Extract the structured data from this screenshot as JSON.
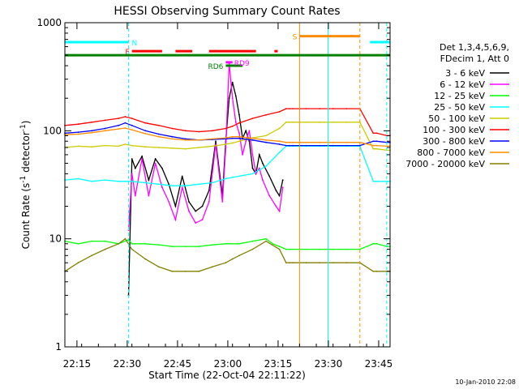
{
  "chart_data": {
    "type": "line",
    "title": "HESSI Observing Summary Count Rates",
    "xlabel": "Start Time (22-Oct-04 22:11:22)",
    "ylabel_main": "Count Rate (s",
    "ylabel_sup": "-1",
    "ylabel_tail": " detector",
    "ylabel_close": ")",
    "x_unit": "minutes after 22:11:22",
    "xlim": [
      0,
      97
    ],
    "ylim": [
      1,
      1000
    ],
    "yscale": "log",
    "xticks": [
      {
        "label": "22:15",
        "x": 3.6
      },
      {
        "label": "22:30",
        "x": 18.6
      },
      {
        "label": "22:45",
        "x": 33.6
      },
      {
        "label": "23:00",
        "x": 48.6
      },
      {
        "label": "23:15",
        "x": 63.6
      },
      {
        "label": "23:30",
        "x": 78.6
      },
      {
        "label": "23:45",
        "x": 93.6
      }
    ],
    "yticks": [
      {
        "label": "1",
        "y": 1
      },
      {
        "label": "10",
        "y": 10
      },
      {
        "label": "100",
        "y": 100
      },
      {
        "label": "1000",
        "y": 1000
      }
    ],
    "legend_header": [
      "Det 1,3,4,5,6,9,",
      "FDecim 1, Att 0"
    ],
    "legend_position": "right",
    "series": [
      {
        "name": "3 - 6 keV",
        "color": "#000000",
        "x": [
          19,
          20,
          21,
          23,
          25,
          27,
          29,
          31,
          33,
          35,
          37,
          39,
          41,
          43,
          45,
          47,
          48,
          49,
          50,
          51,
          52,
          53,
          54,
          55,
          56,
          57,
          58,
          59,
          61,
          63,
          64,
          65
        ],
        "y": [
          3,
          55,
          45,
          58,
          35,
          55,
          45,
          32,
          20,
          38,
          22,
          18,
          20,
          28,
          80,
          25,
          80,
          200,
          280,
          210,
          140,
          85,
          100,
          80,
          45,
          40,
          60,
          50,
          38,
          28,
          25,
          35
        ]
      },
      {
        "name": "6 - 12 keV",
        "color": "#ff00ff",
        "x": [
          19,
          20,
          21,
          23,
          25,
          27,
          29,
          31,
          33,
          35,
          37,
          39,
          41,
          43,
          45,
          47,
          48,
          49,
          50,
          51,
          52,
          53,
          54,
          55,
          56,
          57,
          58,
          59,
          61,
          63,
          64,
          65
        ],
        "y": [
          12,
          40,
          25,
          55,
          25,
          50,
          30,
          22,
          15,
          30,
          18,
          14,
          15,
          22,
          75,
          22,
          70,
          420,
          200,
          120,
          95,
          60,
          80,
          100,
          60,
          40,
          45,
          35,
          25,
          20,
          18,
          30
        ]
      },
      {
        "name": "12 - 25 keV",
        "color": "#00ff00",
        "x": [
          0,
          4,
          8,
          12,
          16,
          19,
          20,
          24,
          28,
          32,
          36,
          40,
          44,
          48,
          52,
          56,
          60,
          62,
          64,
          66,
          67,
          68,
          72,
          76,
          80,
          84,
          88,
          92,
          93,
          96,
          97
        ],
        "y": [
          9.5,
          9,
          9.5,
          9.5,
          9,
          9.8,
          9,
          9,
          8.8,
          8.5,
          8.5,
          8.5,
          8.8,
          9,
          9,
          9.5,
          10,
          9,
          8.5,
          8,
          8,
          8,
          8,
          8,
          8,
          8,
          8,
          9,
          9,
          8.5,
          8.5
        ]
      },
      {
        "name": "25 - 50 keV",
        "color": "#00ffff",
        "x": [
          0,
          4,
          8,
          12,
          16,
          18,
          20,
          24,
          28,
          32,
          36,
          40,
          44,
          48,
          50,
          52,
          56,
          60,
          64,
          66,
          67,
          68,
          72,
          76,
          80,
          84,
          88,
          92,
          93,
          96,
          97
        ],
        "y": [
          35,
          36,
          34,
          35,
          34,
          34,
          34,
          33,
          32,
          31,
          31,
          32,
          33,
          36,
          37,
          38,
          40,
          47,
          63,
          72,
          72,
          72,
          72,
          72,
          72,
          72,
          72,
          34,
          34,
          34,
          34
        ]
      },
      {
        "name": "50 - 100 keV",
        "color": "#cccc00",
        "x": [
          0,
          4,
          8,
          12,
          16,
          18,
          20,
          24,
          28,
          32,
          36,
          40,
          44,
          48,
          50,
          52,
          56,
          60,
          64,
          66,
          67,
          68,
          72,
          76,
          80,
          84,
          88,
          92,
          93,
          96,
          97
        ],
        "y": [
          70,
          72,
          71,
          73,
          72,
          75,
          73,
          71,
          70,
          69,
          68,
          70,
          72,
          75,
          77,
          80,
          86,
          90,
          105,
          120,
          120,
          120,
          120,
          120,
          120,
          120,
          120,
          68,
          68,
          66,
          66
        ]
      },
      {
        "name": "100 - 300 keV",
        "color": "#ff0000",
        "x": [
          0,
          4,
          8,
          12,
          16,
          18,
          20,
          24,
          28,
          32,
          36,
          40,
          44,
          48,
          50,
          52,
          56,
          60,
          64,
          66,
          67,
          68,
          72,
          76,
          80,
          84,
          88,
          92,
          93,
          96,
          97
        ],
        "y": [
          112,
          115,
          120,
          125,
          130,
          135,
          130,
          118,
          112,
          105,
          100,
          98,
          100,
          105,
          110,
          118,
          130,
          140,
          150,
          160,
          160,
          160,
          160,
          160,
          160,
          160,
          160,
          95,
          95,
          90,
          90
        ]
      },
      {
        "name": "300 - 800 keV",
        "color": "#0000ff",
        "x": [
          0,
          4,
          8,
          12,
          16,
          18,
          20,
          24,
          28,
          32,
          36,
          40,
          44,
          48,
          50,
          52,
          56,
          60,
          64,
          66,
          67,
          68,
          72,
          76,
          80,
          84,
          88,
          92,
          93,
          96,
          97
        ],
        "y": [
          95,
          97,
          100,
          105,
          112,
          118,
          112,
          100,
          93,
          88,
          84,
          82,
          83,
          84,
          85,
          85,
          82,
          78,
          75,
          73,
          73,
          73,
          73,
          73,
          73,
          73,
          73,
          80,
          80,
          78,
          78
        ]
      },
      {
        "name": "800 - 7000 keV",
        "color": "#ff8c00",
        "x": [
          0,
          4,
          8,
          12,
          16,
          18,
          20,
          24,
          28,
          32,
          36,
          40,
          44,
          48,
          50,
          52,
          56,
          60,
          64,
          66,
          67,
          68,
          72,
          76,
          80,
          84,
          88,
          92,
          93,
          96,
          97
        ],
        "y": [
          92,
          93,
          96,
          100,
          104,
          106,
          102,
          94,
          88,
          84,
          82,
          82,
          84,
          86,
          88,
          88,
          85,
          82,
          80,
          78,
          78,
          78,
          78,
          78,
          78,
          78,
          78,
          73,
          73,
          72,
          72
        ]
      },
      {
        "name": "7000 - 20000 keV",
        "color": "#808000",
        "x": [
          0,
          4,
          8,
          12,
          16,
          18,
          20,
          24,
          28,
          32,
          36,
          40,
          44,
          48,
          50,
          52,
          56,
          60,
          64,
          66,
          67,
          68,
          72,
          76,
          80,
          84,
          88,
          92,
          93,
          96,
          97
        ],
        "y": [
          5,
          6,
          7,
          8,
          9,
          10,
          8,
          6.5,
          5.5,
          5,
          5,
          5,
          5.5,
          6,
          6.5,
          7,
          8,
          9.5,
          8,
          6,
          6,
          6,
          6,
          6,
          6,
          6,
          6,
          5,
          5,
          5,
          5
        ]
      }
    ],
    "state_bars": [
      {
        "label": "N",
        "color": "#00ffff",
        "level": 660,
        "segments": [
          [
            0,
            19
          ],
          [
            91,
            97
          ]
        ]
      },
      {
        "label": "F",
        "color": "#ff0000",
        "level": 545,
        "segments": [
          [
            20,
            29
          ],
          [
            33,
            38
          ],
          [
            43,
            57
          ],
          [
            62.5,
            63.5
          ]
        ]
      },
      {
        "label": "",
        "color": "#008000",
        "level": 500,
        "segments": [
          [
            0,
            97
          ]
        ]
      },
      {
        "label": "S",
        "color": "#ff8c00",
        "level": 750,
        "segments": [
          [
            70,
            88
          ]
        ]
      },
      {
        "label": "RD6",
        "color": "#008000",
        "level": 400,
        "segments": [
          [
            48,
            53
          ]
        ]
      },
      {
        "label": "RD9",
        "color": "#ff00ff",
        "level": 430,
        "segments": [
          [
            48,
            50
          ]
        ]
      }
    ],
    "vlines": [
      {
        "x": 19,
        "color": "#00ffff",
        "dashed": true
      },
      {
        "x": 70,
        "color": "#ff8c00",
        "dashed": false
      },
      {
        "x": 78.5,
        "color": "#00ffff",
        "dashed": false
      },
      {
        "x": 88,
        "color": "#ff8c00",
        "dashed": true
      },
      {
        "x": 96,
        "color": "#00ffff",
        "dashed": true
      }
    ],
    "grid": false,
    "footer": "10-Jan-2010 22:08"
  }
}
